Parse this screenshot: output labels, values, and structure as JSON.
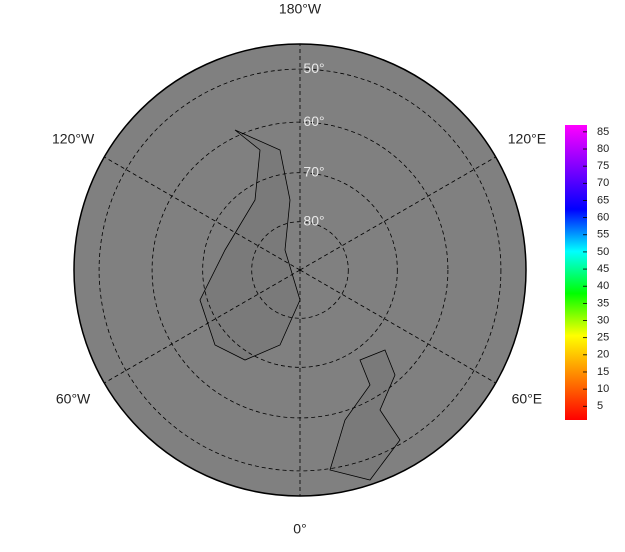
{
  "map": {
    "longitude_labels": [
      {
        "value": -180,
        "label": "180°W"
      },
      {
        "value": 120,
        "label": "120°E"
      },
      {
        "value": 60,
        "label": "60°E"
      },
      {
        "value": 0,
        "label": "0°"
      },
      {
        "value": -60,
        "label": "60°W"
      },
      {
        "value": -120,
        "label": "120°W"
      }
    ],
    "latitude_circles": [
      {
        "value": 50,
        "label": "50°"
      },
      {
        "value": 60,
        "label": "60°"
      },
      {
        "value": 70,
        "label": "70°"
      },
      {
        "value": 80,
        "label": "80°"
      }
    ]
  },
  "colorbar": {
    "clim": [
      1,
      87
    ],
    "ticks": [
      5,
      10,
      15,
      20,
      25,
      30,
      35,
      40,
      45,
      50,
      55,
      60,
      65,
      70,
      75,
      80,
      85
    ],
    "colors": [
      "#ff0000",
      "#ff8000",
      "#ffff00",
      "#00ff00",
      "#00ffff",
      "#0000ff",
      "#8000ff",
      "#ff00ff"
    ]
  }
}
